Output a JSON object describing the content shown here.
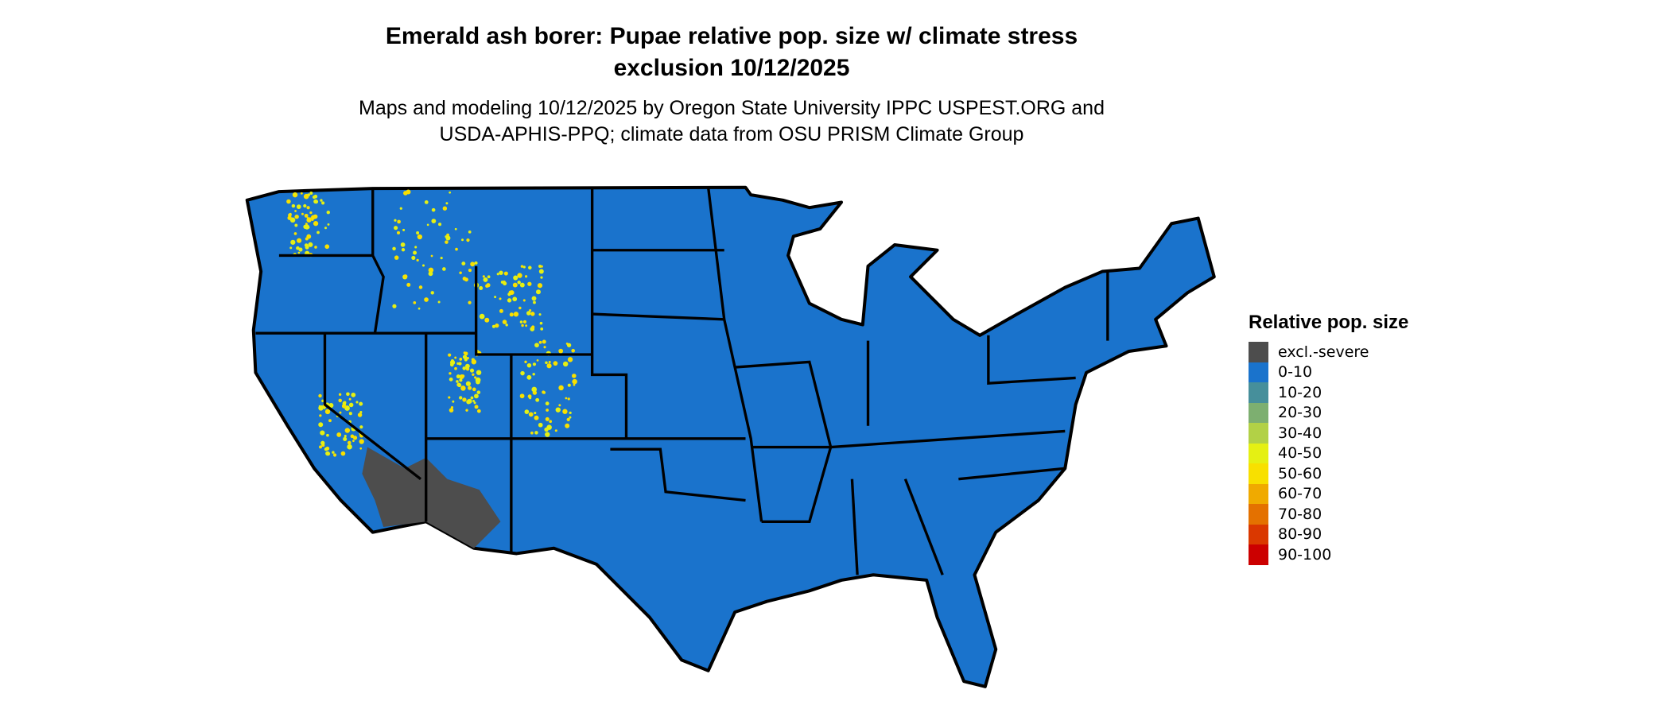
{
  "title_line1": "Emerald ash borer: Pupae relative pop. size w/ climate stress",
  "title_line2": "exclusion 10/12/2025",
  "subtitle_line1": "Maps and modeling 10/12/2025 by Oregon State University IPPC USPEST.ORG and",
  "subtitle_line2": "USDA-APHIS-PPQ; climate data from OSU PRISM Climate Group",
  "map": {
    "region": "Contiguous United States",
    "dominant_class": "0-10",
    "excluded_area": "Southwest desert (AZ/CA/NV)",
    "elevated_area": "Rocky Mountain & Sierra highlands (40-60)"
  },
  "legend": {
    "title": "Relative pop. size",
    "items": [
      {
        "label": "excl.-severe",
        "color": "#4d4d4d"
      },
      {
        "label": "0-10",
        "color": "#1a73cc"
      },
      {
        "label": "10-20",
        "color": "#468f9b"
      },
      {
        "label": "20-30",
        "color": "#7daf70"
      },
      {
        "label": "30-40",
        "color": "#b2d146"
      },
      {
        "label": "40-50",
        "color": "#e5f013"
      },
      {
        "label": "50-60",
        "color": "#f8e000"
      },
      {
        "label": "60-70",
        "color": "#f0aa00"
      },
      {
        "label": "70-80",
        "color": "#e47100"
      },
      {
        "label": "80-90",
        "color": "#da3800"
      },
      {
        "label": "90-100",
        "color": "#cc0000"
      }
    ]
  }
}
